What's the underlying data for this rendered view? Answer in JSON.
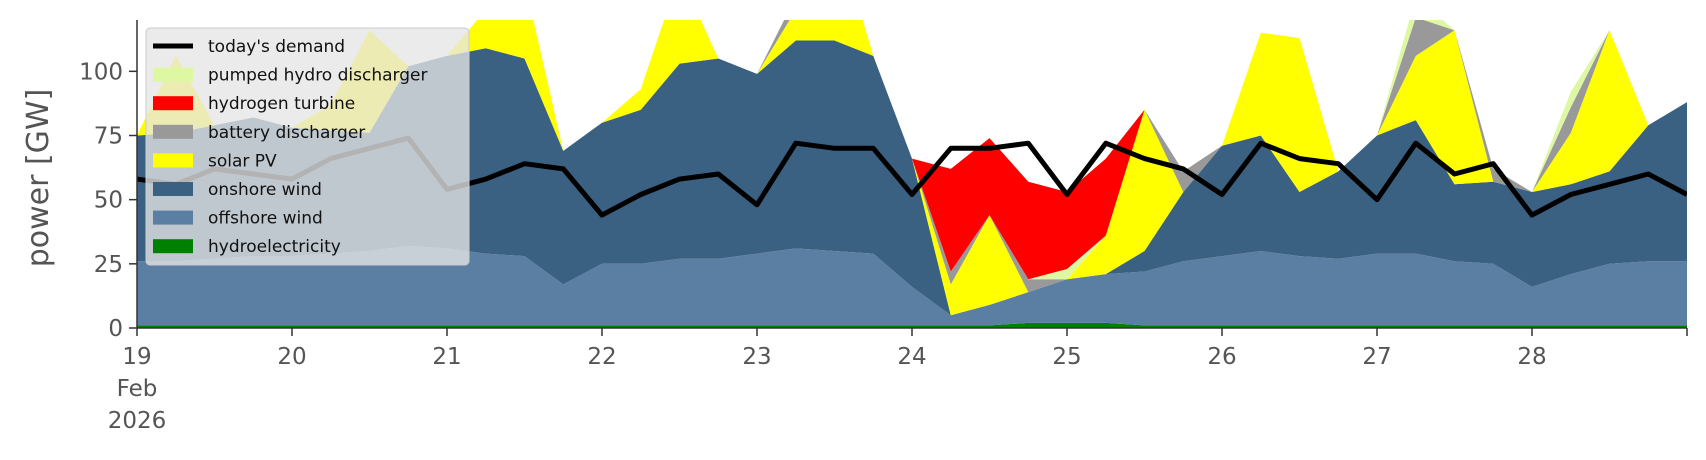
{
  "chart_data": {
    "type": "area",
    "ylabel": "power [GW]",
    "ylim": [
      0,
      120
    ],
    "yticks": [
      0,
      25,
      50,
      75,
      100
    ],
    "xlim": [
      19,
      29
    ],
    "xticks": [
      19,
      20,
      21,
      22,
      23,
      24,
      25,
      26,
      27,
      28
    ],
    "xtick_labels": [
      "19",
      "20",
      "21",
      "22",
      "23",
      "24",
      "25",
      "26",
      "27",
      "28"
    ],
    "first_tick_sub": [
      "Feb",
      "2026"
    ],
    "grid": false,
    "legend_position": "upper-left",
    "x": [
      19.0,
      19.25,
      19.5,
      19.75,
      20.0,
      20.25,
      20.5,
      20.75,
      21.0,
      21.25,
      21.5,
      21.75,
      22.0,
      22.25,
      22.5,
      22.75,
      23.0,
      23.25,
      23.5,
      23.75,
      24.0,
      24.25,
      24.5,
      24.75,
      25.0,
      25.25,
      25.5,
      25.75,
      26.0,
      26.25,
      26.5,
      26.75,
      27.0,
      27.25,
      27.5,
      27.75,
      28.0,
      28.25,
      28.5,
      28.75,
      29.0
    ],
    "series": [
      {
        "name": "hydroelectricity",
        "color": "#008000",
        "values": [
          1,
          1,
          1,
          1,
          1,
          1,
          1,
          1,
          1,
          1,
          1,
          1,
          1,
          1,
          1,
          1,
          1,
          1,
          1,
          1,
          1,
          1,
          1,
          2,
          2,
          2,
          1,
          1,
          1,
          1,
          1,
          1,
          1,
          1,
          1,
          1,
          1,
          1,
          1,
          1,
          1
        ]
      },
      {
        "name": "offshore wind",
        "color": "#5b7fa3",
        "values": [
          25,
          25,
          26,
          27,
          27,
          28,
          29,
          31,
          30,
          28,
          27,
          16,
          24,
          24,
          26,
          26,
          28,
          30,
          29,
          28,
          15,
          4,
          8,
          12,
          17,
          19,
          21,
          25,
          27,
          29,
          27,
          26,
          28,
          28,
          25,
          24,
          15,
          20,
          24,
          25,
          25
        ]
      },
      {
        "name": "onshore wind",
        "color": "#3b6182",
        "values": [
          49,
          50,
          52,
          54,
          50,
          48,
          46,
          70,
          75,
          80,
          77,
          52,
          55,
          60,
          76,
          78,
          70,
          81,
          82,
          77,
          50,
          0,
          0,
          0,
          0,
          0,
          8,
          27,
          43,
          45,
          25,
          34,
          46,
          52,
          30,
          32,
          37,
          35,
          36,
          53,
          62
        ]
      },
      {
        "name": "solar PV",
        "color": "#ffff00",
        "values": [
          0,
          30,
          0,
          0,
          0,
          10,
          40,
          0,
          0,
          15,
          30,
          0,
          0,
          8,
          35,
          0,
          0,
          12,
          45,
          0,
          0,
          12,
          35,
          0,
          0,
          15,
          55,
          0,
          0,
          40,
          60,
          0,
          0,
          25,
          60,
          0,
          0,
          20,
          55,
          0,
          0
        ]
      },
      {
        "name": "battery discharger",
        "color": "#999999",
        "values": [
          0,
          0,
          0,
          0,
          0,
          0,
          0,
          0,
          0,
          0,
          0,
          0,
          0,
          0,
          0,
          0,
          0,
          5,
          0,
          0,
          0,
          5,
          0,
          5,
          0,
          0,
          0,
          8,
          0,
          0,
          0,
          0,
          0,
          15,
          0,
          5,
          0,
          10,
          0,
          0,
          0
        ]
      },
      {
        "name": "pumped hydro discharger",
        "color": "#ddf7a3",
        "values": [
          0,
          0,
          0,
          0,
          0,
          0,
          0,
          0,
          0,
          0,
          0,
          0,
          0,
          0,
          0,
          0,
          0,
          0,
          0,
          0,
          0,
          0,
          0,
          0,
          4,
          0,
          0,
          0,
          0,
          0,
          0,
          0,
          0,
          8,
          0,
          0,
          0,
          6,
          0,
          0,
          0
        ]
      },
      {
        "name": "hydrogen turbine",
        "color": "#ff0000",
        "values": [
          0,
          0,
          0,
          0,
          0,
          0,
          0,
          0,
          0,
          0,
          0,
          0,
          0,
          0,
          0,
          0,
          0,
          0,
          0,
          0,
          0,
          40,
          30,
          38,
          30,
          30,
          0,
          0,
          0,
          0,
          0,
          0,
          0,
          0,
          0,
          0,
          0,
          0,
          0,
          0,
          0
        ]
      }
    ],
    "demand": {
      "name": "today's demand",
      "color": "#000000",
      "values": [
        58,
        56,
        62,
        60,
        58,
        66,
        70,
        74,
        54,
        58,
        64,
        62,
        44,
        52,
        58,
        60,
        48,
        72,
        70,
        70,
        52,
        70,
        70,
        72,
        52,
        72,
        66,
        62,
        52,
        72,
        66,
        64,
        50,
        72,
        60,
        64,
        44,
        52,
        56,
        60,
        52
      ]
    },
    "legend_order": [
      "today's demand",
      "pumped hydro discharger",
      "hydrogen turbine",
      "battery discharger",
      "solar PV",
      "onshore wind",
      "offshore wind",
      "hydroelectricity"
    ]
  }
}
